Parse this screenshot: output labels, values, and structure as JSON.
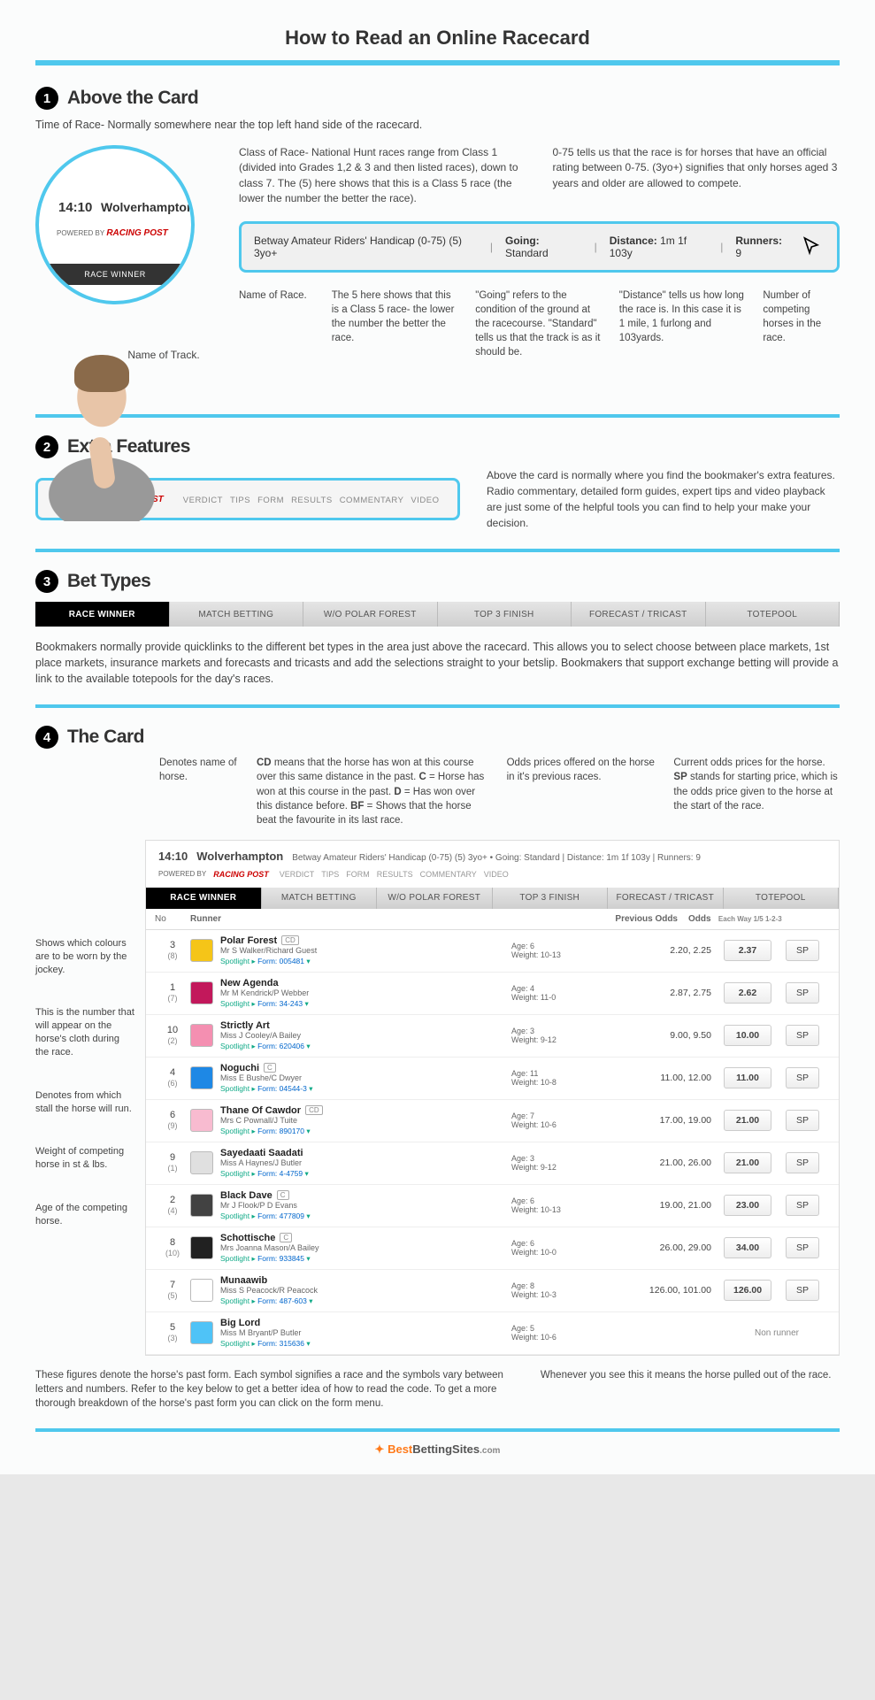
{
  "page_title": "How to Read an Online Racecard",
  "accent_color": "#4fc8ed",
  "section1": {
    "num": "1",
    "title": "Above the Card",
    "intro": "Time of Race- Normally somewhere near the top left hand side of the racecard.",
    "bubble": {
      "time": "14:10",
      "track": "Wolverhampton",
      "powered": "POWERED BY",
      "rp": "RACING POST",
      "band": "RACE WINNER"
    },
    "name_of_track_label": "Name of Track.",
    "top_col1": "Class of Race- National Hunt races range from Class 1 (divided into Grades 1,2 & 3 and then listed races), down to class 7. The (5) here shows that this is a Class 5 race (the lower the number the better the race).",
    "top_col2": "0-75 tells us that the race is for horses that have an official rating between 0-75.  (3yo+) signifies that only horses aged 3 years and older are allowed to compete.",
    "race_bar": {
      "name": "Betway Amateur Riders' Handicap (0-75) (5) 3yo+",
      "going_label": "Going:",
      "going_val": "Standard",
      "dist_label": "Distance:",
      "dist_val": "1m 1f 103y",
      "runners_label": "Runners:",
      "runners_val": "9"
    },
    "bottom": {
      "name_of_race": "Name of Race.",
      "class5": "The 5 here shows that this is a Class 5 race- the lower the number the better the race.",
      "going": "\"Going\" refers to the condition of the ground at the racecourse. \"Standard\" tells us that the track is as it should be.",
      "distance": "\"Distance\" tells us how long the race is. In this case it is 1 mile, 1 furlong and 103yards.",
      "runners": "Number of competing horses in the race."
    }
  },
  "section2": {
    "num": "2",
    "title": "Extra Features",
    "tabs": [
      "VERDICT",
      "TIPS",
      "FORM",
      "RESULTS",
      "COMMENTARY",
      "VIDEO"
    ],
    "text": "Above the card is normally where you find the bookmaker's extra features. Radio commentary, detailed form guides, expert tips and video playback are just some of the helpful tools you can find to help your make your decision."
  },
  "section3": {
    "num": "3",
    "title": "Bet Types",
    "tabs": [
      "RACE WINNER",
      "MATCH BETTING",
      "W/O POLAR FOREST",
      "TOP 3 FINISH",
      "FORECAST / TRICAST",
      "TOTEPOOL"
    ],
    "text": "Bookmakers normally provide quicklinks to the different bet types in the area just above the racecard. This allows you to select choose between place markets, 1st place markets, insurance markets and forecasts and tricasts and add the selections straight to your betslip. Bookmakers that support exchange betting will provide a link to the available totepools for the day's races."
  },
  "section4": {
    "num": "4",
    "title": "The Card",
    "top": {
      "c2": "Denotes name of horse.",
      "c3": "CD means that the horse has won at this course over this same distance in the past. C = Horse has won at this course in the past. D = Has won over this distance before. BF = Shows that the horse beat the favourite in its last race.",
      "c4": "Odds prices offered on the horse in it's previous races.",
      "c5": "Current odds prices for the horse. SP stands for starting price, which is the odds price given to the horse at the start of the race."
    },
    "left_notes": {
      "colours": "Shows which colours are to be worn by the jockey.",
      "number": "This is the number that will appear on the horse's cloth during the race.",
      "stall": "Denotes from which stall the horse will run.",
      "weight": "Weight of competing horse in st & lbs.",
      "age": "Age of the competing horse."
    },
    "card_header": {
      "time": "14:10",
      "track": "Wolverhampton",
      "rest": "Betway Amateur Riders' Handicap (0-75) (5) 3yo+  •  Going: Standard  |  Distance: 1m 1f 103y  |  Runners: 9"
    },
    "thead": {
      "no": "No",
      "runner": "Runner",
      "prev": "Previous Odds",
      "odds": "Odds",
      "ew": "Each Way 1/5 1-2-3"
    },
    "runners": [
      {
        "num": "3",
        "draw": "(8)",
        "silk": "#f5c518",
        "name": "Polar Forest",
        "badge": "CD",
        "jt": "Mr S Walker/Richard Guest",
        "form": "005481",
        "age": "Age: 6",
        "wgt": "Weight: 10-13",
        "prev": "2.20, 2.25",
        "odds": "2.37",
        "sp": "SP"
      },
      {
        "num": "1",
        "draw": "(7)",
        "silk": "#c2185b",
        "name": "New Agenda",
        "badge": "",
        "jt": "Mr M Kendrick/P Webber",
        "form": "34-243",
        "age": "Age: 4",
        "wgt": "Weight: 11-0",
        "prev": "2.87, 2.75",
        "odds": "2.62",
        "sp": "SP"
      },
      {
        "num": "10",
        "draw": "(2)",
        "silk": "#f48fb1",
        "name": "Strictly Art",
        "badge": "",
        "jt": "Miss J Cooley/A Bailey",
        "form": "620406",
        "age": "Age: 3",
        "wgt": "Weight: 9-12",
        "prev": "9.00, 9.50",
        "odds": "10.00",
        "sp": "SP"
      },
      {
        "num": "4",
        "draw": "(6)",
        "silk": "#1e88e5",
        "name": "Noguchi",
        "badge": "C",
        "jt": "Miss E Bushe/C Dwyer",
        "form": "04544-3",
        "age": "Age: 11",
        "wgt": "Weight: 10-8",
        "prev": "11.00, 12.00",
        "odds": "11.00",
        "sp": "SP"
      },
      {
        "num": "6",
        "draw": "(9)",
        "silk": "#f8bbd0",
        "name": "Thane Of Cawdor",
        "badge": "CD",
        "jt": "Mrs C Pownall/J Tuite",
        "form": "890170",
        "age": "Age: 7",
        "wgt": "Weight: 10-6",
        "prev": "17.00, 19.00",
        "odds": "21.00",
        "sp": "SP"
      },
      {
        "num": "9",
        "draw": "(1)",
        "silk": "#e0e0e0",
        "name": "Sayedaati Saadati",
        "badge": "",
        "jt": "Miss A Haynes/J Butler",
        "form": "4-4759",
        "age": "Age: 3",
        "wgt": "Weight: 9-12",
        "prev": "21.00, 26.00",
        "odds": "21.00",
        "sp": "SP"
      },
      {
        "num": "2",
        "draw": "(4)",
        "silk": "#424242",
        "name": "Black Dave",
        "badge": "C",
        "jt": "Mr J Flook/P D Evans",
        "form": "477809",
        "age": "Age: 6",
        "wgt": "Weight: 10-13",
        "prev": "19.00, 21.00",
        "odds": "23.00",
        "sp": "SP"
      },
      {
        "num": "8",
        "draw": "(10)",
        "silk": "#212121",
        "name": "Schottische",
        "badge": "C",
        "jt": "Mrs Joanna Mason/A Bailey",
        "form": "933845",
        "age": "Age: 6",
        "wgt": "Weight: 10-0",
        "prev": "26.00, 29.00",
        "odds": "34.00",
        "sp": "SP"
      },
      {
        "num": "7",
        "draw": "(5)",
        "silk": "#ffffff",
        "name": "Munaawib",
        "badge": "",
        "jt": "Miss S Peacock/R Peacock",
        "form": "487-603",
        "age": "Age: 8",
        "wgt": "Weight: 10-3",
        "prev": "126.00, 101.00",
        "odds": "126.00",
        "sp": "SP"
      },
      {
        "num": "5",
        "draw": "(3)",
        "silk": "#4fc3f7",
        "name": "Big Lord",
        "badge": "",
        "jt": "Miss M Bryant/P Butler",
        "form": "315636",
        "age": "Age: 5",
        "wgt": "Weight: 10-6",
        "prev": "",
        "odds": "",
        "sp": "",
        "non_runner": "Non runner"
      }
    ],
    "foot": {
      "left": "These figures denote the horse's past form. Each symbol signifies a race and the symbols vary between letters and numbers. Refer to the key below to get a better idea of how to read the code. To get a more thorough breakdown of the horse's past form you can click on the form menu.",
      "right": "Whenever you see this it means the horse pulled out of the race."
    }
  },
  "footer": {
    "brand1": "Best",
    "brand2": "BettingSites",
    "brand3": ".com"
  }
}
